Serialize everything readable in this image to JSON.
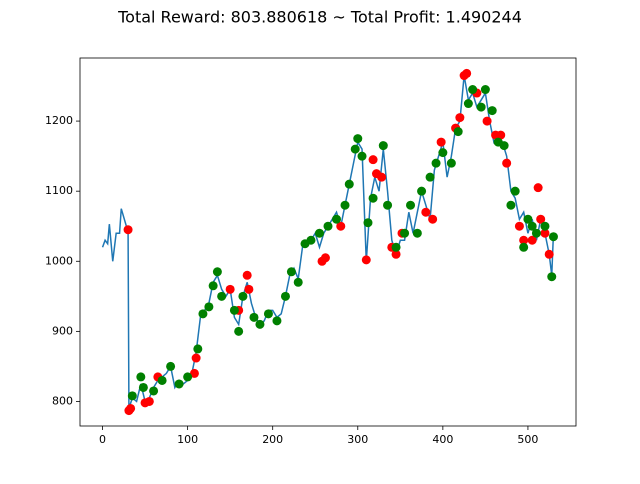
{
  "chart_data": {
    "type": "line",
    "title": "Total Reward: 803.880618 ~ Total Profit: 1.490244",
    "xlim": [
      -26.5,
      556.5
    ],
    "ylim": [
      765,
      1290
    ],
    "xticks": [
      0,
      100,
      200,
      300,
      400,
      500
    ],
    "yticks": [
      800,
      900,
      1000,
      1100,
      1200
    ],
    "series": [
      {
        "style": "line",
        "color": "#1f77b4",
        "x": [
          0,
          3,
          6,
          8,
          12,
          16,
          20,
          22,
          28,
          30,
          31,
          35,
          40,
          45,
          50,
          55,
          60,
          65,
          70,
          75,
          80,
          85,
          90,
          95,
          100,
          105,
          110,
          115,
          120,
          125,
          130,
          135,
          140,
          145,
          150,
          155,
          160,
          165,
          170,
          175,
          180,
          185,
          190,
          195,
          200,
          205,
          210,
          215,
          220,
          225,
          230,
          235,
          240,
          245,
          250,
          255,
          260,
          265,
          270,
          275,
          280,
          285,
          290,
          295,
          300,
          305,
          310,
          315,
          320,
          325,
          330,
          335,
          340,
          345,
          350,
          355,
          360,
          365,
          370,
          375,
          380,
          385,
          390,
          395,
          400,
          405,
          410,
          415,
          420,
          425,
          430,
          435,
          440,
          445,
          450,
          455,
          460,
          465,
          470,
          475,
          480,
          485,
          490,
          495,
          500,
          505,
          510,
          515,
          520,
          525,
          528,
          530
        ],
        "values": [
          1020,
          1030,
          1025,
          1053,
          1000,
          1040,
          1040,
          1075,
          1050,
          1045,
          790,
          805,
          800,
          825,
          800,
          805,
          820,
          830,
          835,
          840,
          850,
          820,
          830,
          825,
          830,
          840,
          870,
          920,
          930,
          940,
          970,
          980,
          960,
          950,
          960,
          920,
          910,
          950,
          970,
          940,
          920,
          910,
          915,
          930,
          930,
          920,
          925,
          950,
          980,
          990,
          975,
          1020,
          1030,
          1030,
          1040,
          1020,
          1040,
          1050,
          1060,
          1070,
          1050,
          1080,
          1110,
          1140,
          1170,
          1160,
          1000,
          1090,
          1120,
          1100,
          1160,
          1100,
          1030,
          1010,
          1030,
          1030,
          1070,
          1040,
          1070,
          1100,
          1080,
          1060,
          1130,
          1150,
          1170,
          1120,
          1150,
          1190,
          1200,
          1265,
          1230,
          1240,
          1220,
          1230,
          1240,
          1200,
          1170,
          1180,
          1170,
          1150,
          1100,
          1090,
          1060,
          1070,
          1040,
          1060,
          1030,
          1060,
          1040,
          1010,
          980,
          1040
        ]
      },
      {
        "style": "markers",
        "color": "#ff0000",
        "x": [
          30,
          31,
          33,
          50,
          55,
          65,
          108,
          110,
          150,
          160,
          170,
          172,
          258,
          262,
          280,
          310,
          318,
          322,
          328,
          340,
          345,
          352,
          380,
          388,
          398,
          415,
          420,
          425,
          428,
          440,
          452,
          462,
          468,
          475,
          490,
          495,
          505,
          512,
          515,
          520,
          525
        ],
        "values": [
          1045,
          787,
          790,
          798,
          800,
          835,
          840,
          862,
          960,
          930,
          980,
          960,
          1000,
          1005,
          1050,
          1002,
          1145,
          1125,
          1120,
          1020,
          1010,
          1040,
          1070,
          1060,
          1170,
          1190,
          1205,
          1265,
          1268,
          1240,
          1200,
          1180,
          1180,
          1140,
          1050,
          1030,
          1030,
          1105,
          1060,
          1040,
          1010
        ]
      },
      {
        "style": "markers",
        "color": "#008000",
        "x": [
          35,
          45,
          48,
          60,
          70,
          80,
          90,
          100,
          112,
          118,
          125,
          130,
          135,
          140,
          155,
          160,
          165,
          178,
          185,
          195,
          205,
          215,
          222,
          230,
          238,
          245,
          255,
          265,
          275,
          285,
          290,
          297,
          300,
          305,
          312,
          318,
          330,
          335,
          345,
          355,
          362,
          370,
          375,
          385,
          392,
          400,
          410,
          418,
          430,
          435,
          445,
          450,
          458,
          465,
          472,
          480,
          485,
          495,
          500,
          505,
          510,
          520,
          528,
          530
        ],
        "values": [
          808,
          835,
          820,
          815,
          830,
          850,
          825,
          835,
          875,
          925,
          935,
          965,
          985,
          950,
          930,
          900,
          950,
          920,
          910,
          925,
          915,
          950,
          985,
          970,
          1025,
          1030,
          1040,
          1050,
          1060,
          1080,
          1110,
          1160,
          1175,
          1150,
          1055,
          1090,
          1165,
          1080,
          1020,
          1040,
          1080,
          1040,
          1100,
          1120,
          1140,
          1155,
          1140,
          1185,
          1225,
          1245,
          1220,
          1245,
          1215,
          1170,
          1165,
          1080,
          1100,
          1020,
          1060,
          1050,
          1040,
          1050,
          978,
          1035
        ]
      }
    ]
  }
}
